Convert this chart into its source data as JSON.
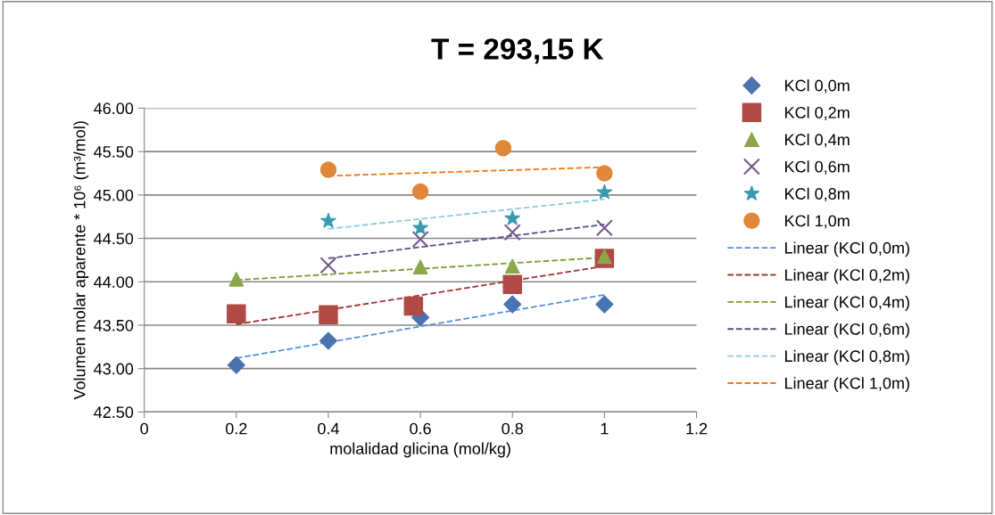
{
  "chart_data": {
    "type": "scatter",
    "title": "T = 293,15 K",
    "xlabel": "molalidad glicina (mol/kg)",
    "ylabel": "Volumen molar aparente * 10⁶ (m³/mol)",
    "xlim": [
      0,
      1.2
    ],
    "xticks": [
      0,
      0.2,
      0.4,
      0.6,
      0.8,
      1,
      1.2
    ],
    "ylim": [
      42.5,
      46.0
    ],
    "yticks": [
      {
        "value": 42.5,
        "label": "42.50"
      },
      {
        "value": 43.0,
        "label": "43.00"
      },
      {
        "value": 43.5,
        "label": "43.50"
      },
      {
        "value": 44.0,
        "label": "44.00"
      },
      {
        "value": 44.5,
        "label": "44.50"
      },
      {
        "value": 45.0,
        "label": "45.00"
      },
      {
        "value": 45.5,
        "label": "45.50"
      },
      {
        "value": 46.0,
        "label": "46.00"
      }
    ],
    "grid": "y",
    "legend": "right",
    "series": [
      {
        "name": "KCl 0,0m",
        "color": "#4a74b0",
        "marker": "diamond",
        "x": [
          0.2,
          0.4,
          0.6,
          0.8,
          1.0
        ],
        "values": [
          43.04,
          43.32,
          43.59,
          43.74,
          43.74
        ]
      },
      {
        "name": "KCl 0,2m",
        "color": "#b04a45",
        "marker": "square",
        "x": [
          0.2,
          0.4,
          0.585,
          0.8,
          1.0
        ],
        "values": [
          43.63,
          43.62,
          43.72,
          43.97,
          44.27
        ]
      },
      {
        "name": "KCl 0,4m",
        "color": "#8aa84a",
        "marker": "triangle",
        "x": [
          0.2,
          0.6,
          0.8,
          1.0
        ],
        "values": [
          44.03,
          44.17,
          44.18,
          44.29
        ]
      },
      {
        "name": "KCl 0,6m",
        "color": "#74598f",
        "marker": "cross",
        "x": [
          0.4,
          0.6,
          0.8,
          1.0
        ],
        "values": [
          44.19,
          44.49,
          44.57,
          44.62
        ]
      },
      {
        "name": "KCl 0,8m",
        "color": "#3a9bb0",
        "marker": "star",
        "x": [
          0.4,
          0.6,
          0.8,
          1.0
        ],
        "values": [
          44.7,
          44.62,
          44.73,
          45.03
        ]
      },
      {
        "name": "KCl 1,0m",
        "color": "#e0873a",
        "marker": "circle",
        "x": [
          0.4,
          0.6,
          0.78,
          1.0
        ],
        "values": [
          45.29,
          45.04,
          45.54,
          45.25
        ]
      },
      {
        "name": "Linear (KCl 0,0m)",
        "type": "line",
        "color": "#5590dd",
        "line_style": "dashed",
        "x": [
          0.2,
          1.0
        ],
        "values": [
          43.12,
          43.85
        ]
      },
      {
        "name": "Linear (KCl 0,2m)",
        "type": "line",
        "color": "#9e3633",
        "line_style": "dashed",
        "x": [
          0.2,
          1.0
        ],
        "values": [
          43.51,
          44.18
        ]
      },
      {
        "name": "Linear (KCl 0,4m)",
        "type": "line",
        "color": "#7a9a30",
        "line_style": "dashed",
        "x": [
          0.2,
          1.0
        ],
        "values": [
          44.02,
          44.28
        ]
      },
      {
        "name": "Linear (KCl 0,6m)",
        "type": "line",
        "color": "#5e4a85",
        "line_style": "dashed",
        "x": [
          0.4,
          1.0
        ],
        "values": [
          44.27,
          44.66
        ]
      },
      {
        "name": "Linear (KCl 0,8m)",
        "type": "line",
        "color": "#8accdf",
        "line_style": "dashed",
        "x": [
          0.4,
          1.0
        ],
        "values": [
          44.61,
          44.95
        ]
      },
      {
        "name": "Linear (KCl 1,0m)",
        "type": "line",
        "color": "#ee7a15",
        "line_style": "dashed",
        "x": [
          0.4,
          1.0
        ],
        "values": [
          45.22,
          45.32
        ]
      }
    ]
  }
}
